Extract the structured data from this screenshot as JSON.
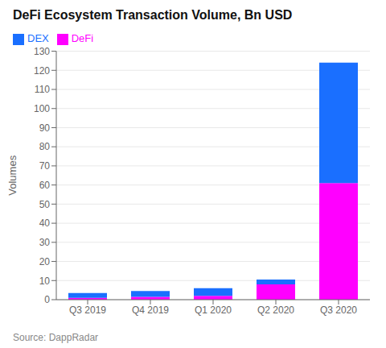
{
  "chart_data": {
    "type": "bar",
    "title": "DeFi Ecosystem Transaction Volume, Bn USD",
    "ylabel": "Volumes",
    "categories": [
      "Q3 2019",
      "Q4 2019",
      "Q1 2020",
      "Q2 2020",
      "Q3 2020"
    ],
    "series": [
      {
        "name": "DeFi",
        "color": "#FF00FF",
        "values": [
          1.0,
          1.5,
          2.0,
          8.0,
          61.0
        ]
      },
      {
        "name": "DEX",
        "color": "#1A6FFF",
        "values": [
          2.5,
          3.0,
          4.0,
          2.5,
          63.0
        ]
      }
    ],
    "stacked": true,
    "ylim": [
      0,
      130
    ],
    "yticks": [
      0,
      10,
      20,
      30,
      40,
      50,
      60,
      70,
      80,
      90,
      100,
      110,
      120,
      130
    ],
    "grid": true,
    "legend": "upper left",
    "annotations": [
      "Source: DappRadar"
    ]
  }
}
